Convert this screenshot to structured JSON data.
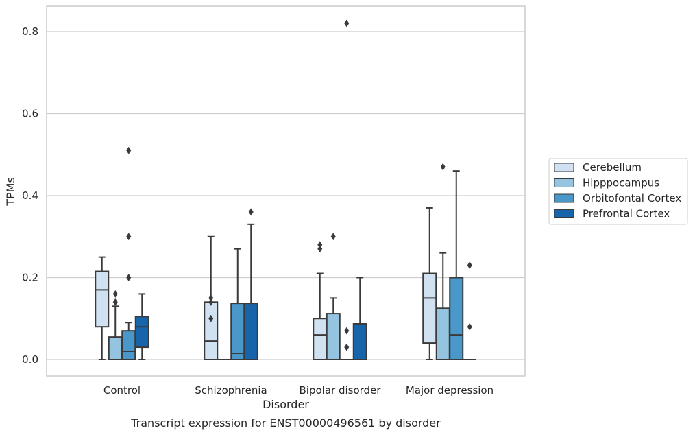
{
  "chart_data": {
    "type": "box",
    "title": "",
    "caption": "Transcript expression for ENST00000496561 by disorder",
    "xlabel": "Disorder",
    "ylabel": "TPMs",
    "ylim": [
      -0.04,
      0.86
    ],
    "yticks": [
      0.0,
      0.2,
      0.4,
      0.6,
      0.8
    ],
    "ytick_labels": [
      "0.0",
      "0.2",
      "0.4",
      "0.6",
      "0.8"
    ],
    "grid": true,
    "legend_position": "right",
    "categories": [
      "Control",
      "Schizophrenia",
      "Bipolar disorder",
      "Major depression"
    ],
    "series": [
      {
        "name": "Cerebellum",
        "color": "#d0e1f2",
        "boxes": [
          {
            "whislo": 0.0,
            "q1": 0.08,
            "med": 0.17,
            "q3": 0.215,
            "whishi": 0.25,
            "fliers": []
          },
          {
            "whislo": 0.0,
            "q1": 0.0,
            "med": 0.045,
            "q3": 0.14,
            "whishi": 0.3,
            "fliers": [
              0.1,
              0.14,
              0.15
            ]
          },
          {
            "whislo": 0.0,
            "q1": 0.0,
            "med": 0.06,
            "q3": 0.1,
            "whishi": 0.21,
            "fliers": [
              0.27,
              0.28
            ]
          },
          {
            "whislo": 0.0,
            "q1": 0.04,
            "med": 0.15,
            "q3": 0.21,
            "whishi": 0.37,
            "fliers": []
          }
        ]
      },
      {
        "name": "Hipppocampus",
        "color": "#94c4df",
        "boxes": [
          {
            "whislo": 0.0,
            "q1": 0.0,
            "med": 0.0,
            "q3": 0.055,
            "whishi": 0.13,
            "fliers": [
              0.14,
              0.16
            ]
          },
          {
            "whislo": 0.0,
            "q1": 0.0,
            "med": 0.0,
            "q3": 0.0,
            "whishi": 0.0,
            "fliers": []
          },
          {
            "whislo": 0.0,
            "q1": 0.0,
            "med": 0.0,
            "q3": 0.112,
            "whishi": 0.15,
            "fliers": [
              0.3
            ]
          },
          {
            "whislo": 0.0,
            "q1": 0.0,
            "med": 0.0,
            "q3": 0.125,
            "whishi": 0.26,
            "fliers": [
              0.47
            ]
          }
        ]
      },
      {
        "name": "Orbitofontal Cortex",
        "color": "#4a98c9",
        "boxes": [
          {
            "whislo": 0.0,
            "q1": 0.0,
            "med": 0.02,
            "q3": 0.07,
            "whishi": 0.09,
            "fliers": [
              0.2,
              0.3,
              0.51
            ]
          },
          {
            "whislo": 0.0,
            "q1": 0.0,
            "med": 0.015,
            "q3": 0.137,
            "whishi": 0.27,
            "fliers": []
          },
          {
            "whislo": 0.0,
            "q1": 0.0,
            "med": 0.0,
            "q3": 0.0,
            "whishi": 0.0,
            "fliers": [
              0.03,
              0.07,
              0.82
            ]
          },
          {
            "whislo": 0.0,
            "q1": 0.0,
            "med": 0.06,
            "q3": 0.2,
            "whishi": 0.46,
            "fliers": []
          }
        ]
      },
      {
        "name": "Prefrontal Cortex",
        "color": "#1764ab",
        "boxes": [
          {
            "whislo": 0.0,
            "q1": 0.03,
            "med": 0.08,
            "q3": 0.105,
            "whishi": 0.16,
            "fliers": []
          },
          {
            "whislo": 0.0,
            "q1": 0.0,
            "med": 0.0,
            "q3": 0.137,
            "whishi": 0.33,
            "fliers": [
              0.36
            ]
          },
          {
            "whislo": 0.0,
            "q1": 0.0,
            "med": 0.0,
            "q3": 0.087,
            "whishi": 0.2,
            "fliers": []
          },
          {
            "whislo": 0.0,
            "q1": 0.0,
            "med": 0.0,
            "q3": 0.0,
            "whishi": 0.0,
            "fliers": [
              0.08,
              0.23
            ]
          }
        ]
      }
    ],
    "edge_color": "#3a3a3a",
    "grid_color": "#cccccc",
    "frame_color": "#cccccc"
  }
}
